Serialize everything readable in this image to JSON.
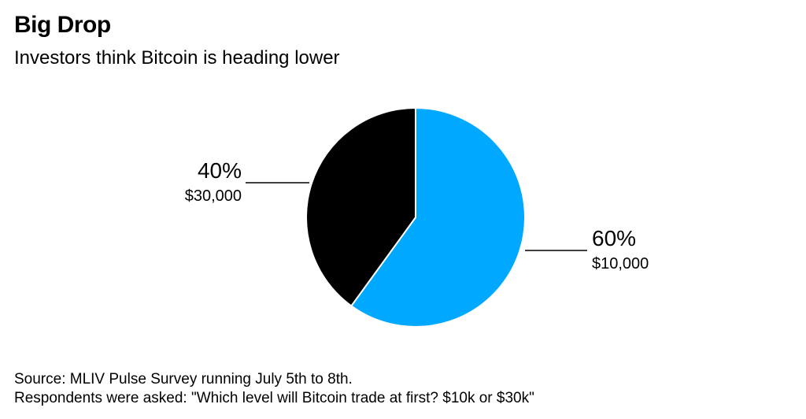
{
  "header": {
    "title": "Big Drop",
    "subtitle": "Investors think Bitcoin is heading lower"
  },
  "chart_data": {
    "type": "pie",
    "title": "Big Drop",
    "subtitle": "Investors think Bitcoin is heading lower",
    "slices": [
      {
        "label": "$10,000",
        "value": 60,
        "pct_label": "60%",
        "color": "#00A8FF"
      },
      {
        "label": "$30,000",
        "value": 40,
        "pct_label": "40%",
        "color": "#000000"
      }
    ]
  },
  "footer": {
    "source": "Source: MLIV Pulse Survey running July 5th to 8th.",
    "note": "Respondents were asked: \"Which level will Bitcoin trade at first? $10k or $30k\""
  }
}
